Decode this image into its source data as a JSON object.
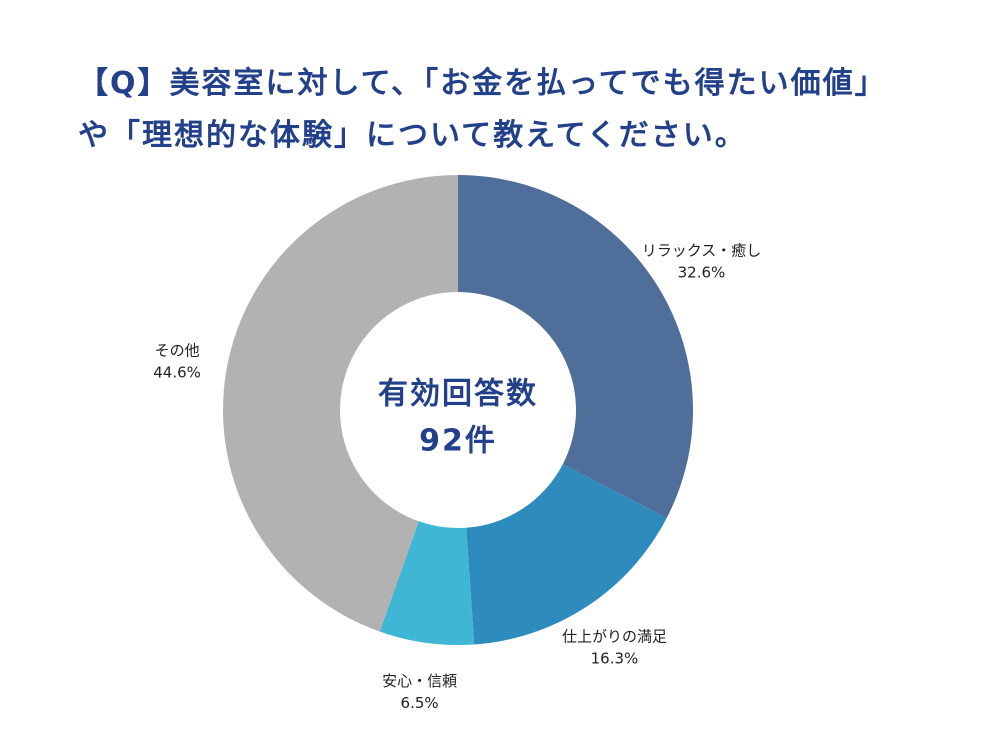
{
  "chart_data": {
    "type": "donut",
    "title": "【Q】美容室に対して、「お金を払ってでも得たい価値」や「理想的な体験」について教えてください。",
    "center_text": "有効回答数",
    "center_subtext": "92件",
    "categories": [
      "リラックス・癒し",
      "仕上がりの満足",
      "安心・信頼",
      "その他"
    ],
    "values": [
      32.6,
      16.3,
      6.5,
      44.6
    ],
    "value_labels": [
      "32.6%",
      "16.3%",
      "6.5%",
      "44.6%"
    ],
    "colors": [
      "#4f6e9a",
      "#2d8bbd",
      "#3fb6d4",
      "#b2b2b2"
    ]
  }
}
